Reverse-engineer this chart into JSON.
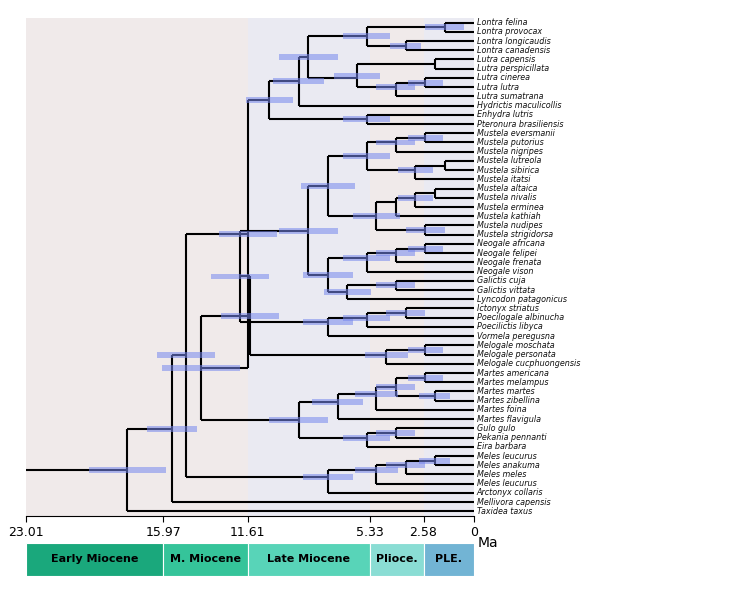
{
  "taxa": [
    "Lontra felina",
    "Lontra provocax",
    "Lontra longicaudis",
    "Lontra canadensis",
    "Lutra capensis",
    "Lutra perspicillata",
    "Lutra cinerea",
    "Lutra lutra",
    "Lutra sumatrana",
    "Hydrictis maculicollis",
    "Enhydra lutris",
    "Pteronura brasiliensis",
    "Mustela eversmanii",
    "Mustela putorius",
    "Mustela nigripes",
    "Mustela lutreola",
    "Mustela sibirica",
    "Mustela itatsi",
    "Mustela altaica",
    "Mustela nivalis",
    "Mustela erminea",
    "Mustela kathiah",
    "Mustela nudipes",
    "Mustela strigidorsa",
    "Neogale africana",
    "Neogale felipei",
    "Neogale frenata",
    "Neogale vison",
    "Galictis cuja",
    "Galictis vittata",
    "Lyncodon patagonicus",
    "Ictonyx striatus",
    "Poecilogale albinucha",
    "Poecilictis libyca",
    "Vormela peregusna",
    "Melogale moschata",
    "Melogale personata",
    "Melogale cucphuongensis",
    "Martes americana",
    "Martes melampus",
    "Martes martes",
    "Martes zibellina",
    "Martes foina",
    "Martes flavigula",
    "Gulo gulo",
    "Pekania pennanti",
    "Eira barbara",
    "Meles leucurus",
    "Meles anakuma",
    "Meles meles",
    "Meles leucurus",
    "Arctonyx collaris",
    "Mellivora capensis",
    "Taxidea taxus"
  ],
  "t_max": 23.01,
  "t_min": 0.0,
  "line_color": "#000000",
  "bar_color": "#7788ee",
  "bar_alpha": 0.55,
  "tree_bg_light": "#f5efef",
  "tree_bg_mid": "#e8e8f0",
  "epoch_bg_colors": [
    "#f5efef",
    "#f5efef",
    "#eef0f5",
    "#f5efef",
    "#eef0f5"
  ],
  "epoch_colors": [
    "#1aa87c",
    "#35c49a",
    "#58d4b8",
    "#8addd4",
    "#72b4d4"
  ],
  "epoch_labels": [
    "Early Miocene",
    "M. Miocene",
    "Late Miocene",
    "Plioce.",
    "PLE."
  ],
  "epoch_times": [
    23.01,
    15.97,
    11.61,
    5.33,
    2.58,
    0.0
  ],
  "time_ticks": [
    23.01,
    15.97,
    11.61,
    5.33,
    2.58,
    0
  ],
  "taxon_fontsize": 5.8,
  "axis_fontsize": 9,
  "epoch_fontsize": 8,
  "lw": 1.5
}
